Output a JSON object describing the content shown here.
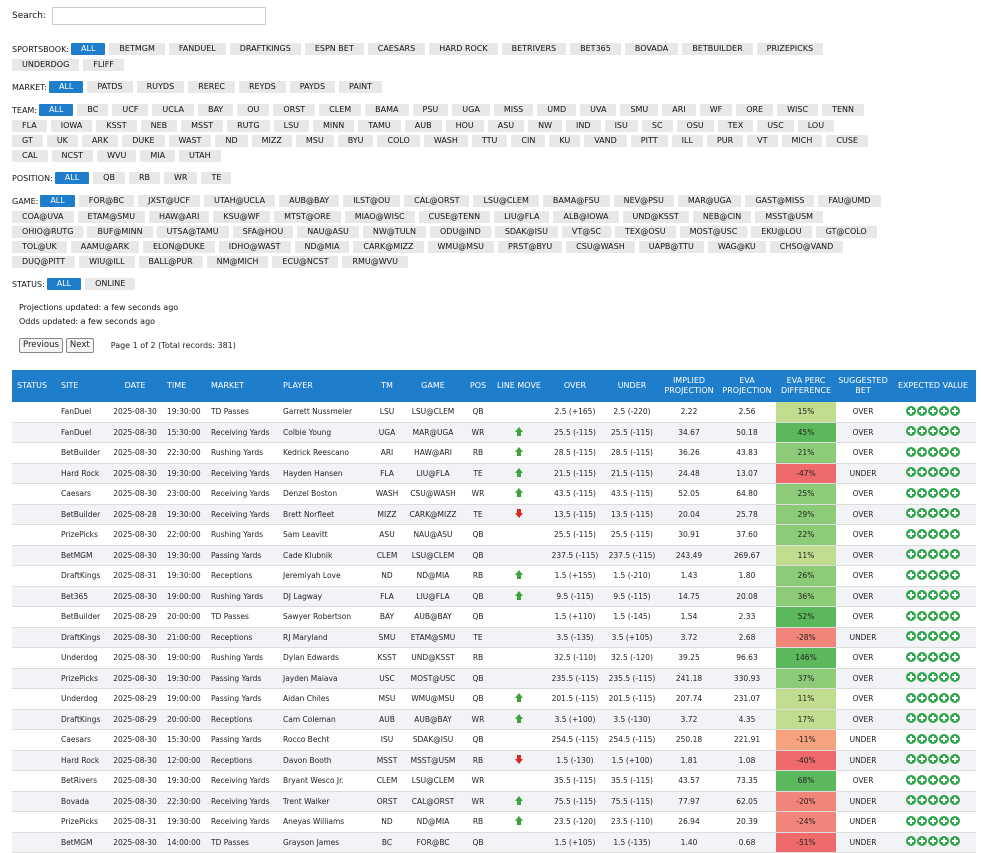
{
  "search": {
    "label": "Search:",
    "placeholder": ""
  },
  "filters": {
    "sportsbook": {
      "label": "SPORTSBOOK:",
      "active": "ALL",
      "options": [
        "ALL",
        "BETMGM",
        "FANDUEL",
        "DRAFTKINGS",
        "ESPN BET",
        "CAESARS",
        "HARD ROCK",
        "BETRIVERS",
        "BET365",
        "BOVADA",
        "BETBUILDER",
        "PRIZEPICKS",
        "UNDERDOG",
        "FLIFF"
      ]
    },
    "market": {
      "label": "MARKET:",
      "active": "ALL",
      "options": [
        "ALL",
        "PATDS",
        "RUYDS",
        "REREC",
        "REYDS",
        "PAYDS",
        "PAINT"
      ]
    },
    "team": {
      "label": "TEAM:",
      "active": "ALL",
      "options": [
        "ALL",
        "BC",
        "UCF",
        "UCLA",
        "BAY",
        "OU",
        "ORST",
        "CLEM",
        "BAMA",
        "PSU",
        "UGA",
        "MISS",
        "UMD",
        "UVA",
        "SMU",
        "ARI",
        "WF",
        "ORE",
        "WISC",
        "TENN",
        "FLA",
        "IOWA",
        "KSST",
        "NEB",
        "MSST",
        "RUTG",
        "LSU",
        "MINN",
        "TAMU",
        "AUB",
        "HOU",
        "ASU",
        "NW",
        "IND",
        "ISU",
        "SC",
        "OSU",
        "TEX",
        "USC",
        "LOU",
        "GT",
        "UK",
        "ARK",
        "DUKE",
        "WAST",
        "ND",
        "MIZZ",
        "MSU",
        "BYU",
        "COLO",
        "WASH",
        "TTU",
        "CIN",
        "KU",
        "VAND",
        "PITT",
        "ILL",
        "PUR",
        "VT",
        "MICH",
        "CUSE",
        "CAL",
        "NCST",
        "WVU",
        "MIA",
        "UTAH"
      ]
    },
    "position": {
      "label": "POSITION:",
      "active": "ALL",
      "options": [
        "ALL",
        "QB",
        "RB",
        "WR",
        "TE"
      ]
    },
    "game": {
      "label": "GAME:",
      "active": "ALL",
      "options": [
        "ALL",
        "FOR@BC",
        "JXST@UCF",
        "UTAH@UCLA",
        "AUB@BAY",
        "ILST@OU",
        "CAL@ORST",
        "LSU@CLEM",
        "BAMA@FSU",
        "NEV@PSU",
        "MAR@UGA",
        "GAST@MISS",
        "FAU@UMD",
        "COA@UVA",
        "ETAM@SMU",
        "HAW@ARI",
        "KSU@WF",
        "MTST@ORE",
        "MIAO@WISC",
        "CUSE@TENN",
        "LIU@FLA",
        "ALB@IOWA",
        "UND@KSST",
        "NEB@CIN",
        "MSST@USM",
        "OHIO@RUTG",
        "BUF@MINN",
        "UTSA@TAMU",
        "SFA@HOU",
        "NAU@ASU",
        "NW@TULN",
        "ODU@IND",
        "SDAK@ISU",
        "VT@SC",
        "TEX@OSU",
        "MOST@USC",
        "EKU@LOU",
        "GT@COLO",
        "TOL@UK",
        "AAMU@ARK",
        "ELON@DUKE",
        "IDHO@WAST",
        "ND@MIA",
        "CARK@MIZZ",
        "WMU@MSU",
        "PRST@BYU",
        "CSU@WASH",
        "UAPB@TTU",
        "WAG@KU",
        "CHSO@VAND",
        "DUQ@PITT",
        "WIU@ILL",
        "BALL@PUR",
        "NM@MICH",
        "ECU@NCST",
        "RMU@WVU"
      ]
    },
    "status": {
      "label": "STATUS:",
      "active": "ALL",
      "options": [
        "ALL",
        "ONLINE"
      ]
    }
  },
  "notes": {
    "projections": "Projections updated: a few seconds ago",
    "odds": "Odds updated: a few seconds ago"
  },
  "pager": {
    "previous": "Previous",
    "next": "Next",
    "info": "Page 1 of 2 (Total records: 381)"
  },
  "table": {
    "columns": [
      "STATUS",
      "SITE",
      "DATE",
      "TIME",
      "MARKET",
      "PLAYER",
      "TM",
      "GAME",
      "POS",
      "LINE MOVE",
      "OVER",
      "UNDER",
      "IMPLIED PROJECTION",
      "EVA PROJECTION",
      "EVA PERC DIFFERENCE",
      "SUGGESTED BET",
      "EXPECTED VALUE"
    ],
    "rows": [
      {
        "site": "FanDuel",
        "date": "2025-08-30",
        "time": "19:30:00",
        "market": "TD Passes",
        "player": "Garrett Nussmeier",
        "tm": "LSU",
        "game": "LSU@CLEM",
        "pos": "QB",
        "move": "",
        "over": "2.5 (+165)",
        "under": "2.5 (-220)",
        "implied": "2.22",
        "eva": "2.56",
        "perc": "15%",
        "bet": "OVER"
      },
      {
        "site": "FanDuel",
        "date": "2025-08-30",
        "time": "15:30:00",
        "market": "Receiving Yards",
        "player": "Colbie Young",
        "tm": "UGA",
        "game": "MAR@UGA",
        "pos": "WR",
        "move": "up",
        "over": "25.5 (-115)",
        "under": "25.5 (-115)",
        "implied": "34.67",
        "eva": "50.18",
        "perc": "45%",
        "bet": "OVER"
      },
      {
        "site": "BetBuilder",
        "date": "2025-08-30",
        "time": "22:30:00",
        "market": "Rushing Yards",
        "player": "Kedrick Reescano",
        "tm": "ARI",
        "game": "HAW@ARI",
        "pos": "RB",
        "move": "up",
        "over": "28.5 (-115)",
        "under": "28.5 (-115)",
        "implied": "36.26",
        "eva": "43.83",
        "perc": "21%",
        "bet": "OVER"
      },
      {
        "site": "Hard Rock",
        "date": "2025-08-30",
        "time": "19:30:00",
        "market": "Receiving Yards",
        "player": "Hayden Hansen",
        "tm": "FLA",
        "game": "LIU@FLA",
        "pos": "TE",
        "move": "up",
        "over": "21.5 (-115)",
        "under": "21.5 (-115)",
        "implied": "24.48",
        "eva": "13.07",
        "perc": "-47%",
        "bet": "UNDER"
      },
      {
        "site": "Caesars",
        "date": "2025-08-30",
        "time": "23:00:00",
        "market": "Receiving Yards",
        "player": "Denzel Boston",
        "tm": "WASH",
        "game": "CSU@WASH",
        "pos": "WR",
        "move": "up",
        "over": "43.5 (-115)",
        "under": "43.5 (-115)",
        "implied": "52.05",
        "eva": "64.80",
        "perc": "25%",
        "bet": "OVER"
      },
      {
        "site": "BetBuilder",
        "date": "2025-08-28",
        "time": "19:30:00",
        "market": "Receiving Yards",
        "player": "Brett Norfleet",
        "tm": "MIZZ",
        "game": "CARK@MIZZ",
        "pos": "TE",
        "move": "down",
        "over": "13.5 (-115)",
        "under": "13.5 (-115)",
        "implied": "20.04",
        "eva": "25.78",
        "perc": "29%",
        "bet": "OVER"
      },
      {
        "site": "PrizePicks",
        "date": "2025-08-30",
        "time": "22:00:00",
        "market": "Rushing Yards",
        "player": "Sam Leavitt",
        "tm": "ASU",
        "game": "NAU@ASU",
        "pos": "QB",
        "move": "",
        "over": "25.5 (-115)",
        "under": "25.5 (-115)",
        "implied": "30.91",
        "eva": "37.60",
        "perc": "22%",
        "bet": "OVER"
      },
      {
        "site": "BetMGM",
        "date": "2025-08-30",
        "time": "19:30:00",
        "market": "Passing Yards",
        "player": "Cade Klubnik",
        "tm": "CLEM",
        "game": "LSU@CLEM",
        "pos": "QB",
        "move": "",
        "over": "237.5 (-115)",
        "under": "237.5 (-115)",
        "implied": "243.49",
        "eva": "269.67",
        "perc": "11%",
        "bet": "OVER"
      },
      {
        "site": "DraftKings",
        "date": "2025-08-31",
        "time": "19:30:00",
        "market": "Receptions",
        "player": "Jeremiyah Love",
        "tm": "ND",
        "game": "ND@MIA",
        "pos": "RB",
        "move": "up",
        "over": "1.5 (+155)",
        "under": "1.5 (-210)",
        "implied": "1.43",
        "eva": "1.80",
        "perc": "26%",
        "bet": "OVER"
      },
      {
        "site": "Bet365",
        "date": "2025-08-30",
        "time": "19:00:00",
        "market": "Rushing Yards",
        "player": "DJ Lagway",
        "tm": "FLA",
        "game": "LIU@FLA",
        "pos": "QB",
        "move": "up",
        "over": "9.5 (-115)",
        "under": "9.5 (-115)",
        "implied": "14.75",
        "eva": "20.08",
        "perc": "36%",
        "bet": "OVER"
      },
      {
        "site": "BetBuilder",
        "date": "2025-08-29",
        "time": "20:00:00",
        "market": "TD Passes",
        "player": "Sawyer Robertson",
        "tm": "BAY",
        "game": "AUB@BAY",
        "pos": "QB",
        "move": "",
        "over": "1.5 (+110)",
        "under": "1.5 (-145)",
        "implied": "1.54",
        "eva": "2.33",
        "perc": "52%",
        "bet": "OVER"
      },
      {
        "site": "DraftKings",
        "date": "2025-08-30",
        "time": "21:00:00",
        "market": "Receptions",
        "player": "RJ Maryland",
        "tm": "SMU",
        "game": "ETAM@SMU",
        "pos": "TE",
        "move": "",
        "over": "3.5 (-135)",
        "under": "3.5 (+105)",
        "implied": "3.72",
        "eva": "2.68",
        "perc": "-28%",
        "bet": "UNDER"
      },
      {
        "site": "Underdog",
        "date": "2025-08-30",
        "time": "19:00:00",
        "market": "Rushing Yards",
        "player": "Dylan Edwards",
        "tm": "KSST",
        "game": "UND@KSST",
        "pos": "RB",
        "move": "",
        "over": "32.5 (-110)",
        "under": "32.5 (-120)",
        "implied": "39.25",
        "eva": "96.63",
        "perc": "146%",
        "bet": "OVER"
      },
      {
        "site": "PrizePicks",
        "date": "2025-08-30",
        "time": "19:30:00",
        "market": "Passing Yards",
        "player": "Jayden Maiava",
        "tm": "USC",
        "game": "MOST@USC",
        "pos": "QB",
        "move": "",
        "over": "235.5 (-115)",
        "under": "235.5 (-115)",
        "implied": "241.18",
        "eva": "330.93",
        "perc": "37%",
        "bet": "OVER"
      },
      {
        "site": "Underdog",
        "date": "2025-08-29",
        "time": "19:00:00",
        "market": "Passing Yards",
        "player": "Aidan Chiles",
        "tm": "MSU",
        "game": "WMU@MSU",
        "pos": "QB",
        "move": "up",
        "over": "201.5 (-115)",
        "under": "201.5 (-115)",
        "implied": "207.74",
        "eva": "231.07",
        "perc": "11%",
        "bet": "OVER"
      },
      {
        "site": "DraftKings",
        "date": "2025-08-29",
        "time": "20:00:00",
        "market": "Receptions",
        "player": "Cam Coleman",
        "tm": "AUB",
        "game": "AUB@BAY",
        "pos": "WR",
        "move": "up",
        "over": "3.5 (+100)",
        "under": "3.5 (-130)",
        "implied": "3.72",
        "eva": "4.35",
        "perc": "17%",
        "bet": "OVER"
      },
      {
        "site": "Caesars",
        "date": "2025-08-30",
        "time": "15:30:00",
        "market": "Passing Yards",
        "player": "Rocco Becht",
        "tm": "ISU",
        "game": "SDAK@ISU",
        "pos": "QB",
        "move": "",
        "over": "254.5 (-115)",
        "under": "254.5 (-115)",
        "implied": "250.18",
        "eva": "221.91",
        "perc": "-11%",
        "bet": "UNDER"
      },
      {
        "site": "Hard Rock",
        "date": "2025-08-30",
        "time": "12:00:00",
        "market": "Receptions",
        "player": "Davon Booth",
        "tm": "MSST",
        "game": "MSST@USM",
        "pos": "RB",
        "move": "down",
        "over": "1.5 (-130)",
        "under": "1.5 (+100)",
        "implied": "1.81",
        "eva": "1.08",
        "perc": "-40%",
        "bet": "UNDER"
      },
      {
        "site": "BetRivers",
        "date": "2025-08-30",
        "time": "19:30:00",
        "market": "Receiving Yards",
        "player": "Bryant Wesco Jr.",
        "tm": "CLEM",
        "game": "LSU@CLEM",
        "pos": "WR",
        "move": "",
        "over": "35.5 (-115)",
        "under": "35.5 (-115)",
        "implied": "43.57",
        "eva": "73.35",
        "perc": "68%",
        "bet": "OVER"
      },
      {
        "site": "Bovada",
        "date": "2025-08-30",
        "time": "22:30:00",
        "market": "Receiving Yards",
        "player": "Trent Walker",
        "tm": "ORST",
        "game": "CAL@ORST",
        "pos": "WR",
        "move": "up",
        "over": "75.5 (-115)",
        "under": "75.5 (-115)",
        "implied": "77.97",
        "eva": "62.05",
        "perc": "-20%",
        "bet": "UNDER"
      },
      {
        "site": "PrizePicks",
        "date": "2025-08-31",
        "time": "19:30:00",
        "market": "Receiving Yards",
        "player": "Aneyas Williams",
        "tm": "ND",
        "game": "ND@MIA",
        "pos": "RB",
        "move": "up",
        "over": "23.5 (-120)",
        "under": "23.5 (-110)",
        "implied": "26.94",
        "eva": "20.39",
        "perc": "-24%",
        "bet": "UNDER"
      },
      {
        "site": "BetMGM",
        "date": "2025-08-30",
        "time": "14:00:00",
        "market": "TD Passes",
        "player": "Grayson James",
        "tm": "BC",
        "game": "FOR@BC",
        "pos": "QB",
        "move": "",
        "over": "1.5 (+105)",
        "under": "1.5 (-135)",
        "implied": "1.40",
        "eva": "0.68",
        "perc": "-51%",
        "bet": "UNDER"
      }
    ],
    "expected_value_icons": 5
  }
}
